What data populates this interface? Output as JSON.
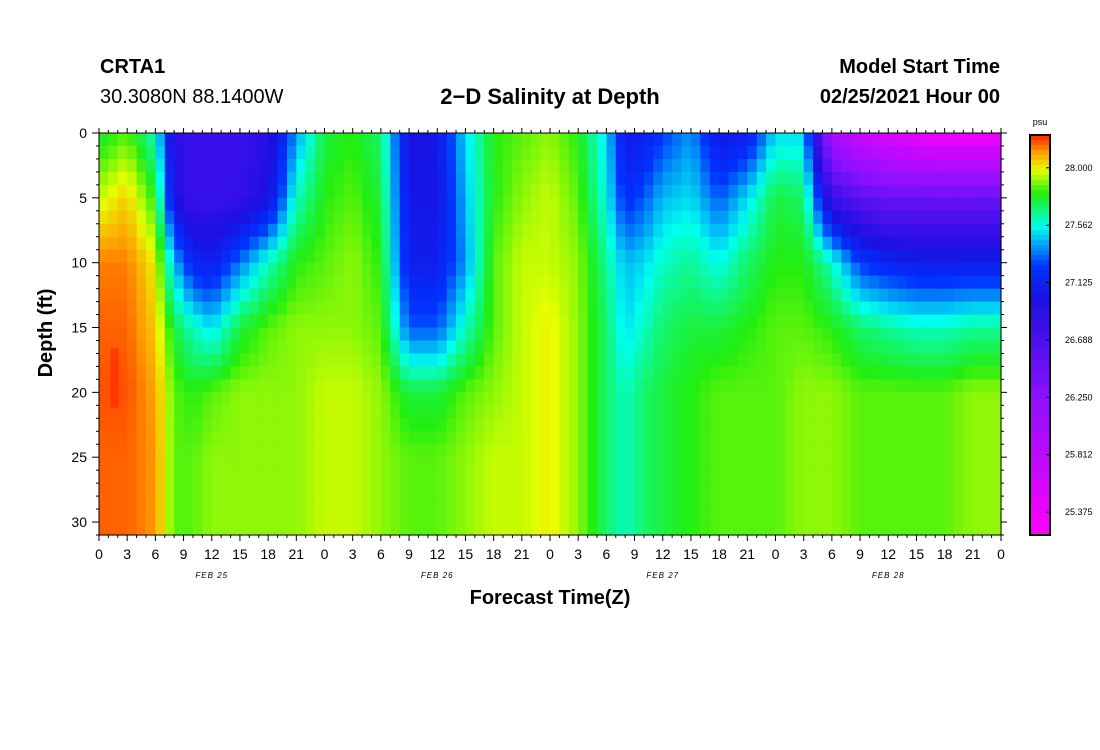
{
  "header": {
    "station": "CRTA1",
    "coords": "30.3080N 88.1400W",
    "title": "2−D Salinity at Depth",
    "start_label": "Model Start Time",
    "start_value": "02/25/2021 Hour 00"
  },
  "chart_data": {
    "type": "heatmap",
    "title": "2−D Salinity at Depth",
    "xlabel": "Forecast Time(Z)",
    "ylabel": "Depth (ft)",
    "x_range_hours": [
      0,
      96
    ],
    "ylim": [
      0,
      31
    ],
    "y_inverted": true,
    "x_tick_labels": [
      "0",
      "3",
      "6",
      "9",
      "12",
      "15",
      "18",
      "21",
      "0",
      "3",
      "6",
      "9",
      "12",
      "15",
      "18",
      "21",
      "0",
      "3",
      "6",
      "9",
      "12",
      "15",
      "18",
      "21",
      "0",
      "3",
      "6",
      "9",
      "12",
      "15",
      "18",
      "21",
      "0"
    ],
    "y_ticks": [
      0,
      5,
      10,
      15,
      20,
      25,
      30
    ],
    "day_labels": [
      "FEB 25",
      "FEB 26",
      "FEB 27",
      "FEB 28"
    ],
    "colorbar": {
      "unit": "psu",
      "range": [
        25.2,
        28.25
      ],
      "tick_values": [
        28.0,
        27.562,
        27.125,
        26.688,
        26.25,
        25.812,
        25.375
      ],
      "tick_labels": [
        "28.000",
        "27.562",
        "27.125",
        "26.688",
        "26.250",
        "25.812",
        "25.375"
      ]
    },
    "field_description": "Salinity (psu) by forecast hour and depth; low-salinity (blue/purple) plumes near surface at hours ~8-22, ~31-38, ~55-61, ~65-71 and from ~78 onward; highest salinity (orange/red) at hours 0-7 below 8 ft",
    "field_samples": {
      "hours": [
        0,
        3,
        6,
        8,
        10,
        12,
        15,
        18,
        21,
        24,
        27,
        30,
        33,
        36,
        39,
        42,
        45,
        48,
        51,
        54,
        56,
        58,
        60,
        63,
        66,
        69,
        72,
        75,
        78,
        81,
        84,
        87,
        90,
        93,
        96
      ],
      "depths_ft": [
        0,
        5,
        10,
        15,
        20,
        25,
        30
      ],
      "values_psu": [
        [
          27.75,
          27.85,
          27.6,
          26.9,
          26.8,
          26.8,
          26.8,
          26.9,
          27.4,
          27.75,
          27.8,
          27.7,
          27.0,
          27.05,
          27.5,
          27.8,
          27.85,
          27.9,
          27.8,
          27.5,
          27.05,
          27.1,
          27.25,
          27.4,
          27.05,
          27.1,
          27.5,
          27.5,
          26.0,
          25.7,
          25.5,
          25.4,
          25.3,
          25.3,
          25.3
        ],
        [
          27.95,
          28.05,
          27.8,
          27.0,
          26.8,
          26.8,
          26.85,
          27.0,
          27.6,
          27.8,
          27.85,
          27.75,
          27.05,
          27.05,
          27.45,
          27.8,
          27.9,
          27.95,
          27.85,
          27.55,
          27.2,
          27.3,
          27.45,
          27.5,
          27.3,
          27.5,
          27.75,
          27.7,
          26.8,
          26.6,
          26.5,
          26.5,
          26.5,
          26.5,
          26.5
        ],
        [
          28.15,
          28.15,
          28.0,
          27.45,
          27.15,
          27.1,
          27.35,
          27.6,
          27.8,
          27.85,
          27.9,
          27.8,
          27.1,
          27.1,
          27.4,
          27.85,
          27.95,
          27.95,
          27.9,
          27.65,
          27.45,
          27.5,
          27.6,
          27.65,
          27.55,
          27.7,
          27.8,
          27.8,
          27.6,
          27.25,
          27.15,
          27.1,
          27.1,
          27.1,
          27.1
        ],
        [
          28.18,
          28.18,
          28.05,
          27.75,
          27.6,
          27.5,
          27.75,
          27.85,
          27.9,
          27.9,
          27.9,
          27.85,
          27.3,
          27.3,
          27.6,
          27.85,
          27.95,
          28.0,
          27.9,
          27.7,
          27.5,
          27.6,
          27.7,
          27.75,
          27.75,
          27.8,
          27.85,
          27.85,
          27.8,
          27.7,
          27.65,
          27.6,
          27.6,
          27.65,
          27.65
        ],
        [
          28.2,
          28.2,
          28.1,
          27.85,
          27.8,
          27.85,
          27.9,
          27.9,
          27.9,
          27.95,
          27.95,
          27.9,
          27.75,
          27.75,
          27.85,
          27.9,
          27.95,
          28.0,
          27.9,
          27.7,
          27.6,
          27.7,
          27.75,
          27.8,
          27.85,
          27.85,
          27.85,
          27.9,
          27.9,
          27.85,
          27.85,
          27.85,
          27.85,
          27.9,
          27.9
        ],
        [
          28.18,
          28.18,
          28.12,
          27.85,
          27.85,
          27.9,
          27.9,
          27.9,
          27.9,
          27.95,
          27.95,
          27.9,
          27.85,
          27.85,
          27.9,
          27.95,
          27.95,
          28.0,
          27.9,
          27.7,
          27.6,
          27.7,
          27.75,
          27.8,
          27.85,
          27.85,
          27.85,
          27.9,
          27.9,
          27.85,
          27.85,
          27.85,
          27.85,
          27.9,
          27.9
        ],
        [
          28.18,
          28.18,
          28.12,
          27.85,
          27.85,
          27.9,
          27.9,
          27.9,
          27.9,
          27.95,
          27.95,
          27.9,
          27.85,
          27.85,
          27.9,
          27.95,
          27.95,
          28.0,
          27.9,
          27.7,
          27.6,
          27.7,
          27.75,
          27.8,
          27.85,
          27.85,
          27.85,
          27.9,
          27.9,
          27.85,
          27.85,
          27.85,
          27.85,
          27.9,
          27.9
        ]
      ]
    },
    "colors": {
      "c_high": "#ff9900",
      "c_red": "#ff2200",
      "c_yellow": "#e6ff00",
      "c_green": "#22ee11",
      "c_cyan": "#00ffee",
      "c_blue": "#0033ff",
      "c_navy": "#1a10e0",
      "c_purple": "#8811ff",
      "c_magenta": "#ff00ff"
    }
  }
}
